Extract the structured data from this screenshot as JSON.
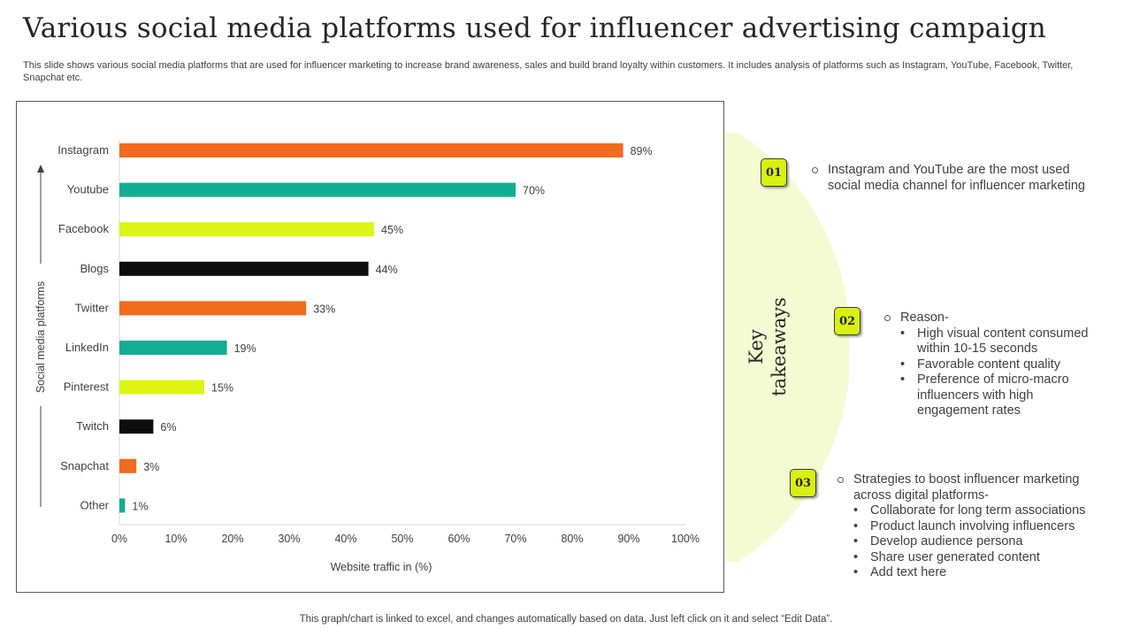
{
  "title": "Various social media platforms used for influencer advertising campaign",
  "subtitle": "This slide shows various social media platforms that are used for influencer marketing to increase brand awareness, sales and build brand loyalty within customers. It includes analysis of platforms such as Instagram, YouTube, Facebook, Twitter, Snapchat etc.",
  "chart_data": {
    "type": "bar",
    "orientation": "horizontal",
    "categories": [
      "Instagram",
      "Youtube",
      "Facebook",
      "Blogs",
      "Twitter",
      "LinkedIn",
      "Pinterest",
      "Twitch",
      "Snapchat",
      "Other"
    ],
    "values": [
      89,
      70,
      45,
      44,
      33,
      19,
      15,
      6,
      3,
      1
    ],
    "value_labels": [
      "89%",
      "70%",
      "45%",
      "44%",
      "33%",
      "19%",
      "15%",
      "6%",
      "3%",
      "1%"
    ],
    "bar_colors": [
      "#f26b1d",
      "#13ad93",
      "#ddf514",
      "#0d0d0d",
      "#f26b1d",
      "#13ad93",
      "#ddf514",
      "#0d0d0d",
      "#f26b1d",
      "#13ad93"
    ],
    "xlim": [
      0,
      100
    ],
    "xticks": [
      0,
      10,
      20,
      30,
      40,
      50,
      60,
      70,
      80,
      90,
      100
    ],
    "xtick_labels": [
      "0%",
      "10%",
      "20%",
      "30%",
      "40%",
      "50%",
      "60%",
      "70%",
      "80%",
      "90%",
      "100%"
    ],
    "xlabel": "Website traffic in (%)",
    "ylabel": "Social media platforms",
    "grid": false
  },
  "key_takeaways": {
    "title_line1": "Key",
    "title_line2": "takeaways",
    "items": [
      {
        "badge": "01",
        "text": "Instagram and YouTube are the most used social media channel for influencer marketing",
        "bullets": []
      },
      {
        "badge": "02",
        "text": "Reason-",
        "bullets": [
          "High visual content consumed within 10-15 seconds",
          "Favorable content quality",
          "Preference of micro-macro influencers with high engagement rates"
        ]
      },
      {
        "badge": "03",
        "text": "Strategies to boost influencer marketing across digital platforms-",
        "bullets": [
          "Collaborate for long term associations",
          "Product launch involving influencers",
          "Develop audience persona",
          "Share user generated content",
          "Add text here"
        ]
      }
    ]
  },
  "footer": "This graph/chart is linked to excel,  and changes automatically based on data. Just left click on it and select “Edit Data”."
}
